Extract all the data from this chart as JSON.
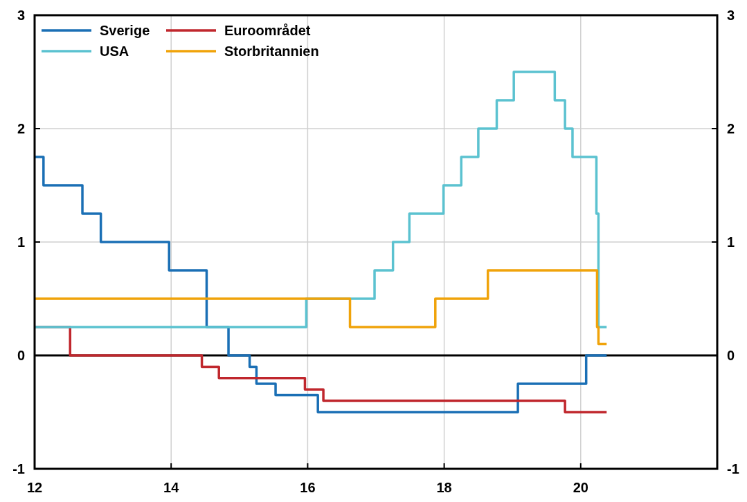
{
  "chart_data": {
    "type": "step",
    "xlim": [
      12,
      22
    ],
    "xticks": [
      12,
      14,
      16,
      18,
      20
    ],
    "ylim": [
      -1,
      3
    ],
    "yticks": [
      -1,
      0,
      1,
      2,
      3
    ],
    "y2lim": [
      -1,
      3
    ],
    "y2ticks": [
      -1,
      0,
      1,
      2,
      3
    ],
    "grid": true,
    "legend": "top left",
    "line_style": "solid",
    "ref_lines": [
      {
        "axis": "y",
        "value": 0,
        "color": "#000000"
      }
    ],
    "series": [
      {
        "name": "Sverige",
        "color": "#1a6fb5",
        "x": [
          12,
          12.13,
          12.7,
          12.97,
          13.97,
          14.52,
          14.84,
          15.15,
          15.25,
          15.53,
          16.15,
          19.08,
          20.08,
          20.38
        ],
        "values": [
          1.75,
          1.5,
          1.25,
          1,
          0.75,
          0.25,
          0,
          -0.1,
          -0.25,
          -0.35,
          -0.5,
          -0.25,
          0,
          0
        ]
      },
      {
        "name": "Euroområdet",
        "color": "#c0272d",
        "x": [
          12,
          12.52,
          14.45,
          14.7,
          15.96,
          16.23,
          19.77,
          20.38
        ],
        "values": [
          0.25,
          0,
          -0.1,
          -0.2,
          -0.3,
          -0.4,
          -0.5,
          -0.5
        ]
      },
      {
        "name": "USA",
        "color": "#5bc2d0",
        "x": [
          12,
          15.98,
          16.98,
          17.25,
          17.49,
          17.99,
          18.25,
          18.5,
          18.77,
          19.02,
          19.62,
          19.77,
          19.88,
          20.23,
          20.26,
          20.38
        ],
        "values": [
          0.25,
          0.5,
          0.75,
          1,
          1.25,
          1.5,
          1.75,
          2,
          2.25,
          2.5,
          2.25,
          2,
          1.75,
          1.25,
          0.25,
          0.25
        ]
      },
      {
        "name": "Storbritannien",
        "color": "#f0a30a",
        "x": [
          12,
          16.62,
          17.87,
          18.64,
          20.24,
          20.26,
          20.38
        ],
        "values": [
          0.5,
          0.25,
          0.5,
          0.75,
          0.25,
          0.1,
          0.1
        ]
      }
    ]
  }
}
